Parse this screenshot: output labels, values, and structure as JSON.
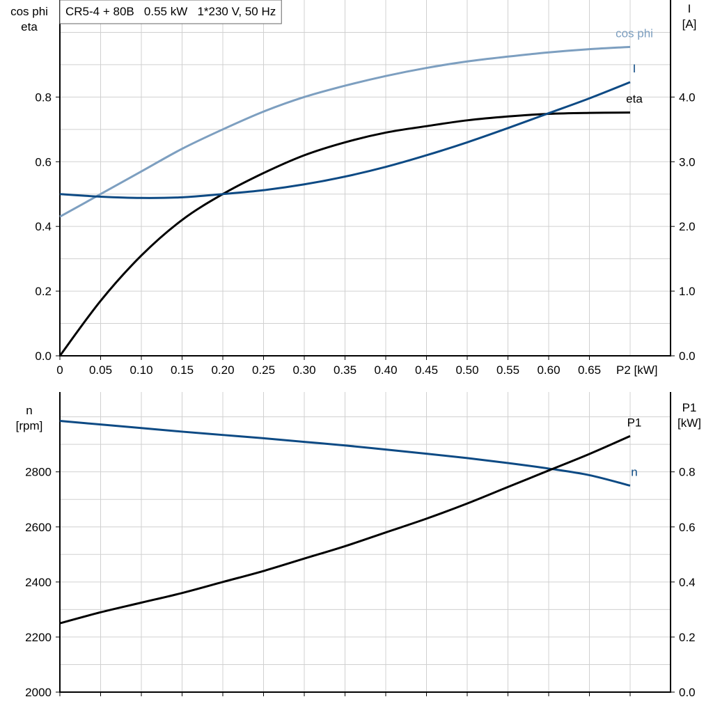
{
  "title": "CR5-4 + 80B   0.55 kW   1*230 V, 50 Hz",
  "chart_data": [
    {
      "type": "line",
      "xlabel": "P2 [kW]",
      "ylabel_left": [
        "cos phi",
        "eta"
      ],
      "ylabel_right": [
        "I",
        "[A]"
      ],
      "xlim": [
        0,
        0.75
      ],
      "ylim_left": [
        0,
        1.1
      ],
      "ylim_right": [
        0,
        5.5
      ],
      "x_ticks": [
        "0",
        "0.05",
        "0.10",
        "0.15",
        "0.20",
        "0.25",
        "0.30",
        "0.35",
        "0.40",
        "0.45",
        "0.50",
        "0.55",
        "0.60",
        "0.65"
      ],
      "y_ticks_left": [
        "0.0",
        "0.2",
        "0.4",
        "0.6",
        "0.8"
      ],
      "y_ticks_right": [
        "0.0",
        "1.0",
        "2.0",
        "3.0",
        "4.0"
      ],
      "grid": true,
      "x": [
        0,
        0.05,
        0.1,
        0.15,
        0.2,
        0.25,
        0.3,
        0.35,
        0.4,
        0.45,
        0.5,
        0.55,
        0.6,
        0.65,
        0.7
      ],
      "series": [
        {
          "name": "cos phi",
          "axis": "left",
          "color": "#7d9fc0",
          "values": [
            0.43,
            0.5,
            0.57,
            0.64,
            0.7,
            0.755,
            0.8,
            0.835,
            0.865,
            0.89,
            0.91,
            0.925,
            0.938,
            0.948,
            0.955
          ]
        },
        {
          "name": "eta",
          "axis": "left",
          "color": "#000000",
          "values": [
            0.0,
            0.17,
            0.31,
            0.42,
            0.5,
            0.565,
            0.62,
            0.66,
            0.69,
            0.71,
            0.728,
            0.74,
            0.748,
            0.751,
            0.752
          ]
        },
        {
          "name": "I",
          "axis": "right",
          "color": "#0d4a84",
          "values": [
            2.5,
            2.46,
            2.44,
            2.45,
            2.5,
            2.56,
            2.65,
            2.77,
            2.92,
            3.1,
            3.3,
            3.52,
            3.75,
            3.98,
            4.23
          ]
        }
      ]
    },
    {
      "type": "line",
      "ylabel_left": [
        "n",
        "[rpm]"
      ],
      "ylabel_right": [
        "P1",
        "[kW]"
      ],
      "xlim": [
        0,
        0.75
      ],
      "ylim_left": [
        2000,
        3090
      ],
      "ylim_right": [
        0,
        1.09
      ],
      "y_ticks_left": [
        "2000",
        "2200",
        "2400",
        "2600",
        "2800"
      ],
      "y_ticks_right": [
        "0.0",
        "0.2",
        "0.4",
        "0.6",
        "0.8"
      ],
      "grid": true,
      "x": [
        0,
        0.05,
        0.1,
        0.15,
        0.2,
        0.25,
        0.3,
        0.35,
        0.4,
        0.45,
        0.5,
        0.55,
        0.6,
        0.65,
        0.7
      ],
      "series": [
        {
          "name": "n",
          "axis": "left",
          "color": "#0d4a84",
          "values": [
            2985,
            2972,
            2959,
            2946,
            2934,
            2922,
            2909,
            2896,
            2881,
            2866,
            2850,
            2832,
            2812,
            2788,
            2750
          ]
        },
        {
          "name": "P1",
          "axis": "right",
          "color": "#000000",
          "values": [
            0.25,
            0.29,
            0.325,
            0.36,
            0.4,
            0.44,
            0.485,
            0.53,
            0.58,
            0.63,
            0.685,
            0.745,
            0.805,
            0.865,
            0.93
          ]
        }
      ]
    }
  ]
}
